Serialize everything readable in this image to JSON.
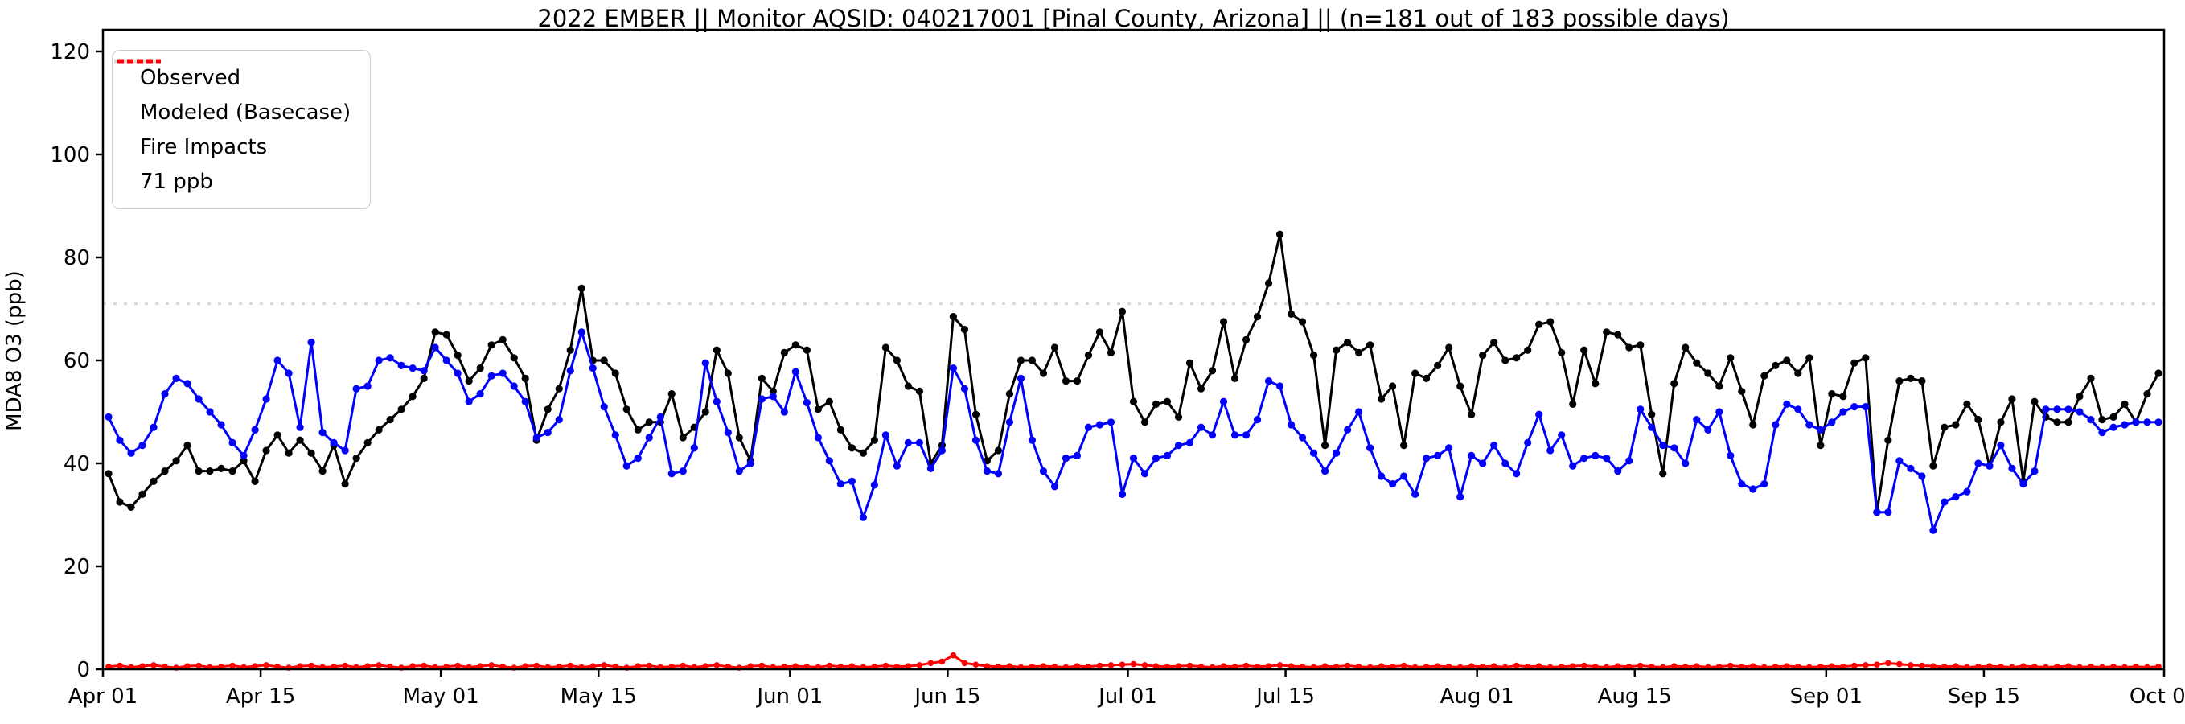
{
  "title": "2022 EMBER || Monitor AQSID: 040217001 [Pinal County, Arizona] || (n=181 out of 183 possible days)",
  "ylabel": "MDA8 O3 (ppb)",
  "legend": [
    {
      "label": "Observed",
      "color": "#000000",
      "style": "solid"
    },
    {
      "label": "Modeled (Basecase)",
      "color": "#0000ff",
      "style": "solid"
    },
    {
      "label": "Fire Impacts",
      "color": "#ff0000",
      "style": "solid"
    },
    {
      "label": "71 ppb",
      "color": "#d9d9d9",
      "style": "dotted"
    }
  ],
  "chart_data": {
    "type": "line",
    "title": "2022 EMBER || Monitor AQSID: 040217001 [Pinal County, Arizona] || (n=181 out of 183 possible days)",
    "xlabel": "",
    "ylabel": "MDA8 O3 (ppb)",
    "ylim": [
      0,
      124.2
    ],
    "y_ticks": [
      0,
      20,
      40,
      60,
      80,
      100,
      120
    ],
    "n_days": 183,
    "x_start": "Apr 01",
    "x_end": "Oct 01",
    "x_tick_labels": [
      "Apr 01",
      "Apr 15",
      "May 01",
      "May 15",
      "Jun 01",
      "Jun 15",
      "Jul 01",
      "Jul 15",
      "Aug 01",
      "Aug 15",
      "Sep 01",
      "Sep 15",
      "Oct 01"
    ],
    "x_tick_days": [
      0,
      14,
      30,
      44,
      61,
      75,
      91,
      105,
      122,
      136,
      153,
      167,
      183
    ],
    "reference_line": {
      "value": 71,
      "label": "71 ppb",
      "color": "#d9d9d9"
    },
    "grid": false,
    "legend_position": "upper left",
    "marker": "circle",
    "series": [
      {
        "name": "Observed",
        "color": "#000000",
        "values": [
          38,
          32.5,
          31.5,
          34,
          36.5,
          38.5,
          40.5,
          43.5,
          38.5,
          38.5,
          39,
          38.5,
          40.5,
          36.5,
          42.5,
          45.5,
          42,
          44.5,
          42,
          38.5,
          43.5,
          36,
          41,
          44,
          46.5,
          48.5,
          50.5,
          53,
          56.5,
          65.5,
          65,
          61,
          56,
          58.5,
          63,
          64,
          60.5,
          56.5,
          44.5,
          50.5,
          54.5,
          62,
          74,
          60,
          60,
          57.5,
          50.5,
          46.5,
          48,
          48,
          53.5,
          45,
          47,
          50,
          62,
          57.5,
          45,
          40.5,
          56.5,
          54,
          61.5,
          63,
          62,
          50.5,
          52,
          46.5,
          43,
          42,
          44.5,
          62.5,
          60,
          55,
          54,
          40,
          43.5,
          68.5,
          66,
          49.5,
          40.5,
          42.5,
          53.5,
          60,
          60,
          57.5,
          62.5,
          56,
          56,
          61,
          65.5,
          61.5,
          69.5,
          52,
          48,
          51.5,
          52,
          49,
          59.5,
          54.5,
          58,
          67.5,
          56.5,
          64,
          68.5,
          75,
          84.5,
          69,
          67.5,
          61,
          43.5,
          62,
          63.5,
          61.5,
          63,
          52.5,
          55,
          43.5,
          57.5,
          56.5,
          59,
          62.5,
          55,
          49.5,
          61,
          63.5,
          60,
          60.5,
          62,
          67,
          67.5,
          61.5,
          51.5,
          62,
          55.5,
          65.5,
          65,
          62.5,
          63,
          49.5,
          38,
          55.5,
          62.5,
          59.5,
          57.5,
          55,
          60.5,
          54,
          47.5,
          57,
          59,
          60,
          57.5,
          60.5,
          43.5,
          53.5,
          53,
          59.5,
          60.5,
          30.5,
          44.5,
          56,
          56.5,
          56,
          39.5,
          47,
          47.5,
          51.5,
          48.5,
          39.5,
          48,
          52.5,
          36.5,
          52,
          49,
          48,
          48,
          53,
          56.5,
          48.5,
          49,
          51.5,
          48,
          53.5,
          57.5
        ]
      },
      {
        "name": "Modeled (Basecase)",
        "color": "#0000ff",
        "values": [
          49,
          44.5,
          42,
          43.5,
          47,
          53.5,
          56.5,
          55.5,
          52.5,
          50,
          47.5,
          44,
          41.5,
          46.5,
          52.5,
          60,
          57.5,
          47,
          63.5,
          46,
          44,
          42.5,
          54.5,
          55,
          60,
          60.5,
          59,
          58.5,
          58,
          62.5,
          60,
          57.5,
          52,
          53.5,
          57,
          57.5,
          55,
          52,
          45,
          46,
          48.5,
          58,
          65.5,
          58.5,
          51,
          45.5,
          39.5,
          41,
          45,
          49,
          38,
          38.5,
          43,
          59.5,
          52,
          46,
          38.5,
          40,
          52.5,
          53,
          50,
          57.8,
          51.8,
          45,
          40.5,
          36,
          36.5,
          29.5,
          35.8,
          45.5,
          39.5,
          44,
          44,
          39,
          42.5,
          58.5,
          54.5,
          44.5,
          38.5,
          38,
          48,
          56.5,
          44.5,
          38.5,
          35.5,
          41,
          41.5,
          47,
          47.5,
          48,
          34,
          41,
          38,
          41,
          41.5,
          43.5,
          44,
          47,
          45.5,
          52,
          45.5,
          45.5,
          48.5,
          56,
          55,
          47.5,
          45,
          42,
          38.5,
          42,
          46.5,
          50,
          43,
          37.5,
          36,
          37.5,
          34,
          41,
          41.5,
          43,
          33.5,
          41.5,
          40,
          43.5,
          40,
          38,
          44,
          49.5,
          42.5,
          45.5,
          39.5,
          41,
          41.5,
          41,
          38.5,
          40.5,
          50.5,
          47,
          43.5,
          43,
          40,
          48.5,
          46.5,
          50,
          41.5,
          36,
          35,
          36,
          47.5,
          51.5,
          50.5,
          47.5,
          46.5,
          48,
          50,
          51,
          51,
          30.5,
          30.5,
          40.5,
          39,
          37.5,
          27,
          32.5,
          33.5,
          34.5,
          40,
          39.5,
          43.5,
          39,
          36,
          38.5,
          50.5,
          50.5,
          50.5,
          50,
          48.5,
          46,
          47,
          47.5,
          48,
          48,
          48
        ]
      },
      {
        "name": "Fire Impacts",
        "color": "#ff0000",
        "values": [
          0.5,
          0.7,
          0.4,
          0.6,
          0.8,
          0.5,
          0.3,
          0.6,
          0.7,
          0.4,
          0.5,
          0.7,
          0.4,
          0.6,
          0.8,
          0.5,
          0.3,
          0.6,
          0.7,
          0.4,
          0.5,
          0.7,
          0.4,
          0.6,
          0.8,
          0.5,
          0.3,
          0.6,
          0.7,
          0.4,
          0.5,
          0.7,
          0.4,
          0.6,
          0.8,
          0.5,
          0.3,
          0.6,
          0.7,
          0.4,
          0.5,
          0.7,
          0.4,
          0.6,
          0.8,
          0.5,
          0.3,
          0.6,
          0.7,
          0.4,
          0.5,
          0.7,
          0.4,
          0.6,
          0.8,
          0.5,
          0.3,
          0.6,
          0.7,
          0.4,
          0.5,
          0.6,
          0.5,
          0.4,
          0.7,
          0.5,
          0.6,
          0.4,
          0.5,
          0.7,
          0.5,
          0.6,
          0.8,
          1.2,
          1.5,
          2.7,
          1.2,
          0.9,
          0.6,
          0.5,
          0.6,
          0.4,
          0.5,
          0.6,
          0.5,
          0.4,
          0.6,
          0.5,
          0.7,
          0.8,
          0.9,
          1.0,
          0.8,
          0.6,
          0.5,
          0.6,
          0.7,
          0.5,
          0.4,
          0.6,
          0.5,
          0.7,
          0.5,
          0.6,
          0.8,
          0.6,
          0.5,
          0.4,
          0.6,
          0.5,
          0.7,
          0.5,
          0.4,
          0.6,
          0.5,
          0.7,
          0.4,
          0.5,
          0.6,
          0.5,
          0.4,
          0.6,
          0.5,
          0.6,
          0.4,
          0.7,
          0.5,
          0.6,
          0.4,
          0.5,
          0.6,
          0.7,
          0.5,
          0.4,
          0.6,
          0.5,
          0.7,
          0.5,
          0.4,
          0.6,
          0.5,
          0.6,
          0.4,
          0.5,
          0.7,
          0.5,
          0.6,
          0.4,
          0.5,
          0.6,
          0.5,
          0.4,
          0.5,
          0.6,
          0.5,
          0.7,
          0.8,
          0.9,
          1.2,
          1.0,
          0.8,
          0.7,
          0.6,
          0.5,
          0.6,
          0.4,
          0.5,
          0.6,
          0.5,
          0.4,
          0.6,
          0.5,
          0.4,
          0.5,
          0.6,
          0.4,
          0.5,
          0.4,
          0.5,
          0.4,
          0.5,
          0.4,
          0.5
        ]
      }
    ]
  }
}
